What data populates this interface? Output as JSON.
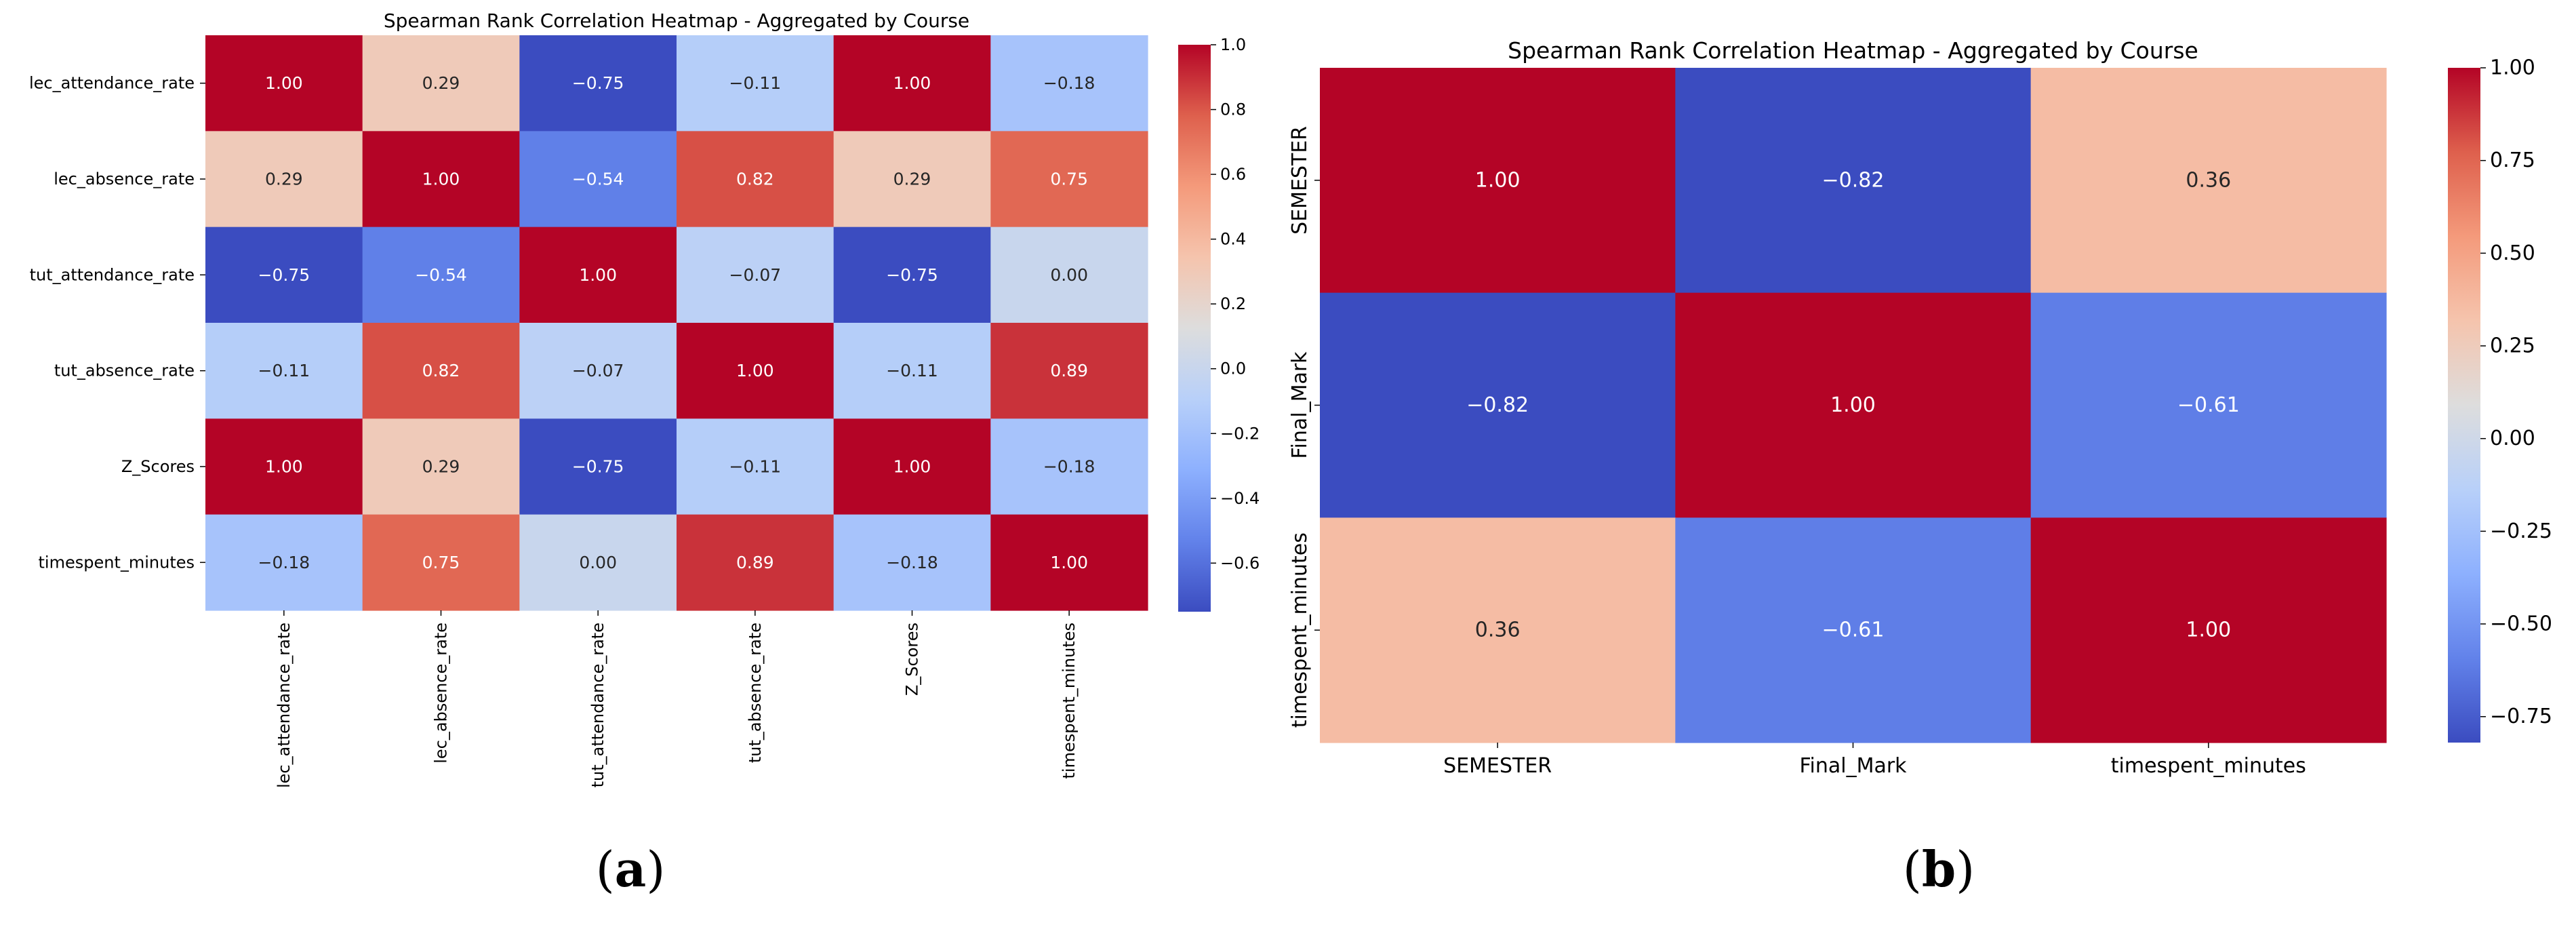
{
  "chart_data": [
    {
      "type": "heatmap",
      "title": "Spearman Rank Correlation Heatmap - Aggregated by Course",
      "panel_label": "(a)",
      "panel_letter": "a",
      "rows": [
        "lec_attendance_rate",
        "lec_absence_rate",
        "tut_attendance_rate",
        "tut_absence_rate",
        "Z_Scores",
        "timespent_minutes"
      ],
      "columns": [
        "lec_attendance_rate",
        "lec_absence_rate",
        "tut_attendance_rate",
        "tut_absence_rate",
        "Z_Scores",
        "timespent_minutes"
      ],
      "values": [
        [
          1.0,
          0.29,
          -0.75,
          -0.11,
          1.0,
          -0.18
        ],
        [
          0.29,
          1.0,
          -0.54,
          0.82,
          0.29,
          0.75
        ],
        [
          -0.75,
          -0.54,
          1.0,
          -0.07,
          -0.75,
          0.0
        ],
        [
          -0.11,
          0.82,
          -0.07,
          1.0,
          -0.11,
          0.89
        ],
        [
          1.0,
          0.29,
          -0.75,
          -0.11,
          1.0,
          -0.18
        ],
        [
          -0.18,
          0.75,
          0.0,
          0.89,
          -0.18,
          1.0
        ]
      ],
      "cell_labels": [
        [
          "1.00",
          "0.29",
          "−0.75",
          "−0.11",
          "1.00",
          "−0.18"
        ],
        [
          "0.29",
          "1.00",
          "−0.54",
          "0.82",
          "0.29",
          "0.75"
        ],
        [
          "−0.75",
          "−0.54",
          "1.00",
          "−0.07",
          "−0.75",
          "0.00"
        ],
        [
          "−0.11",
          "0.82",
          "−0.07",
          "1.00",
          "−0.11",
          "0.89"
        ],
        [
          "1.00",
          "0.29",
          "−0.75",
          "−0.11",
          "1.00",
          "−0.18"
        ],
        [
          "−0.18",
          "0.75",
          "0.00",
          "0.89",
          "−0.18",
          "1.00"
        ]
      ],
      "colormap": "coolwarm",
      "vmin": -0.75,
      "vmax": 1.0,
      "colorbar_ticks": [
        1.0,
        0.8,
        0.6,
        0.4,
        0.2,
        0.0,
        -0.2,
        -0.4,
        -0.6
      ],
      "colorbar_tick_labels": [
        "1.0",
        "0.8",
        "0.6",
        "0.4",
        "0.2",
        "0.0",
        "−0.2",
        "−0.4",
        "−0.6"
      ],
      "xlabel": "",
      "ylabel": ""
    },
    {
      "type": "heatmap",
      "title": "Spearman Rank Correlation Heatmap - Aggregated by Course",
      "panel_label": "(b)",
      "panel_letter": "b",
      "rows": [
        "SEMESTER",
        "Final_Mark",
        "timespent_minutes"
      ],
      "columns": [
        "SEMESTER",
        "Final_Mark",
        "timespent_minutes"
      ],
      "values": [
        [
          1.0,
          -0.82,
          0.36
        ],
        [
          -0.82,
          1.0,
          -0.61
        ],
        [
          0.36,
          -0.61,
          1.0
        ]
      ],
      "cell_labels": [
        [
          "1.00",
          "−0.82",
          "0.36"
        ],
        [
          "−0.82",
          "1.00",
          "−0.61"
        ],
        [
          "0.36",
          "−0.61",
          "1.00"
        ]
      ],
      "colormap": "coolwarm",
      "vmin": -0.82,
      "vmax": 1.0,
      "colorbar_ticks": [
        1.0,
        0.75,
        0.5,
        0.25,
        0.0,
        -0.25,
        -0.5,
        -0.75
      ],
      "colorbar_tick_labels": [
        "1.00",
        "0.75",
        "0.50",
        "0.25",
        "0.00",
        "−0.25",
        "−0.50",
        "−0.75"
      ],
      "xlabel": "",
      "ylabel": ""
    }
  ]
}
